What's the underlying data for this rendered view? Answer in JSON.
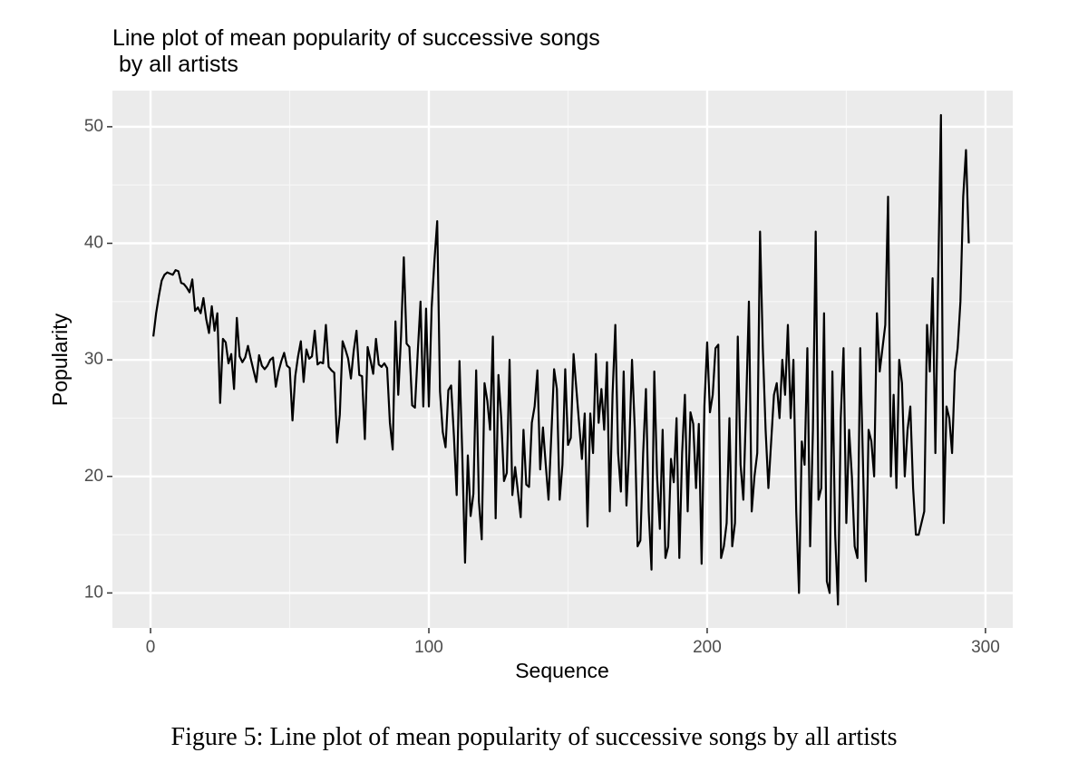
{
  "chart_data": {
    "type": "line",
    "title": "Line plot of mean popularity of successive songs\n by all artists",
    "x_label": "Sequence",
    "y_label": "Popularity",
    "caption": "Figure 5: Line plot of mean popularity of successive songs by all artists",
    "xlim": [
      -13.7,
      309.8
    ],
    "ylim": [
      7.0,
      53.1
    ],
    "xticks": [
      0,
      100,
      200,
      300
    ],
    "yticks": [
      10,
      20,
      30,
      40,
      50
    ],
    "grid": true,
    "series": [
      {
        "color": "#000000",
        "x": [
          1,
          2,
          3,
          4,
          5,
          6,
          7,
          8,
          9,
          10,
          11,
          12,
          13,
          14,
          15,
          16,
          17,
          18,
          19,
          20,
          21,
          22,
          23,
          24,
          25,
          26,
          27,
          28,
          29,
          30,
          31,
          32,
          33,
          34,
          35,
          36,
          37,
          38,
          39,
          40,
          41,
          42,
          43,
          44,
          45,
          46,
          47,
          48,
          49,
          50,
          51,
          52,
          53,
          54,
          55,
          56,
          57,
          58,
          59,
          60,
          61,
          62,
          63,
          64,
          65,
          66,
          67,
          68,
          69,
          70,
          71,
          72,
          73,
          74,
          75,
          76,
          77,
          78,
          79,
          80,
          81,
          82,
          83,
          84,
          85,
          86,
          87,
          88,
          89,
          90,
          91,
          92,
          93,
          94,
          95,
          96,
          97,
          98,
          99,
          100,
          101,
          102,
          103,
          104,
          105,
          106,
          107,
          108,
          109,
          110,
          111,
          112,
          113,
          114,
          115,
          116,
          117,
          118,
          119,
          120,
          121,
          122,
          123,
          124,
          125,
          126,
          127,
          128,
          129,
          130,
          131,
          132,
          133,
          134,
          135,
          136,
          137,
          138,
          139,
          140,
          141,
          142,
          143,
          144,
          145,
          146,
          147,
          148,
          149,
          150,
          151,
          152,
          153,
          154,
          155,
          156,
          157,
          158,
          159,
          160,
          161,
          162,
          163,
          164,
          165,
          166,
          167,
          168,
          169,
          170,
          171,
          172,
          173,
          174,
          175,
          176,
          177,
          178,
          179,
          180,
          181,
          182,
          183,
          184,
          185,
          186,
          187,
          188,
          189,
          190,
          191,
          192,
          193,
          194,
          195,
          196,
          197,
          198,
          199,
          200,
          201,
          202,
          203,
          204,
          205,
          206,
          207,
          208,
          209,
          210,
          211,
          212,
          213,
          214,
          215,
          216,
          217,
          218,
          219,
          220,
          221,
          222,
          223,
          224,
          225,
          226,
          227,
          228,
          229,
          230,
          231,
          232,
          233,
          234,
          235,
          236,
          237,
          238,
          239,
          240,
          241,
          242,
          243,
          244,
          245,
          246,
          247,
          248,
          249,
          250,
          251,
          252,
          253,
          254,
          255,
          256,
          257,
          258,
          259,
          260,
          261,
          262,
          263,
          264,
          265,
          266,
          267,
          268,
          269,
          270,
          271,
          272,
          273,
          274,
          275,
          276,
          277,
          278,
          279,
          280,
          281,
          282,
          283,
          284,
          285,
          286,
          287,
          288,
          289,
          290,
          291,
          292,
          293,
          294
        ],
        "values": [
          32,
          34,
          35.5,
          36.8,
          37.3,
          37.5,
          37.4,
          37.3,
          37.7,
          37.6,
          36.6,
          36.5,
          36.2,
          35.8,
          36.9,
          34.2,
          34.5,
          34,
          35.3,
          33.5,
          32.3,
          34.6,
          32.5,
          34,
          26.3,
          31.8,
          31.5,
          29.7,
          30.5,
          27.5,
          33.6,
          30.3,
          29.8,
          30.2,
          31.2,
          30.1,
          29.1,
          28.1,
          30.4,
          29.5,
          29.2,
          29.5,
          30,
          30.2,
          27.7,
          29,
          29.9,
          30.6,
          29.5,
          29.3,
          24.8,
          28.6,
          30.3,
          31.6,
          28.1,
          30.9,
          30.1,
          30.3,
          32.5,
          29.6,
          29.8,
          29.7,
          33,
          29.4,
          29.1,
          28.9,
          22.9,
          25.3,
          31.6,
          30.9,
          30.1,
          28.4,
          30.8,
          32.5,
          28.7,
          28.6,
          23.2,
          31.1,
          30,
          28.8,
          31.8,
          29.6,
          29.4,
          29.7,
          29.3,
          24.6,
          22.3,
          33.3,
          27,
          32,
          38.8,
          31.4,
          31.1,
          26.1,
          25.9,
          30.6,
          35,
          26,
          34.4,
          26,
          34.5,
          38.5,
          41.9,
          27.3,
          23.8,
          22.5,
          27.4,
          27.8,
          23.5,
          18.4,
          29.9,
          22,
          12.6,
          21.8,
          16.6,
          18.5,
          29.1,
          17.8,
          14.6,
          28,
          26.5,
          24,
          32,
          16.4,
          28.7,
          25,
          19.6,
          20.3,
          30,
          18.4,
          20.8,
          18.7,
          16.5,
          24,
          19.3,
          19.1,
          24.6,
          26,
          29.1,
          20.6,
          24.2,
          21,
          18,
          23.5,
          29.2,
          27.5,
          18,
          21,
          29.2,
          22.7,
          23.3,
          30.5,
          27.5,
          24.5,
          21.5,
          25.4,
          15.7,
          25.4,
          22,
          30.5,
          24.6,
          27.5,
          24,
          29.8,
          17,
          27,
          33,
          22,
          18.7,
          29,
          17.5,
          22.5,
          30,
          24,
          14,
          14.5,
          22,
          27.5,
          17,
          12,
          29,
          20,
          15.5,
          24,
          13,
          14,
          21.5,
          19.5,
          25,
          13,
          22,
          27,
          17,
          25.5,
          24.5,
          19,
          24.5,
          12.5,
          26,
          31.5,
          25.5,
          27,
          31,
          31.3,
          13,
          14,
          16,
          25,
          14,
          16,
          32,
          21,
          18,
          26,
          35,
          17,
          20,
          22,
          41,
          31,
          24,
          19,
          23,
          27,
          28,
          25,
          30,
          27,
          33,
          25,
          30,
          17,
          10,
          23,
          21,
          31,
          14,
          24,
          41,
          18,
          19,
          34,
          11,
          10,
          29,
          15,
          9,
          25,
          31,
          16,
          24,
          20,
          14,
          13,
          31,
          21,
          11,
          24,
          23,
          20,
          34,
          29,
          31,
          33,
          44,
          20,
          27,
          19,
          30,
          28,
          20,
          24,
          26,
          19,
          15,
          15,
          16,
          17,
          33,
          29,
          37,
          22,
          37,
          51,
          16,
          26,
          25,
          22,
          29,
          31,
          35,
          44,
          48,
          40
        ]
      }
    ]
  }
}
